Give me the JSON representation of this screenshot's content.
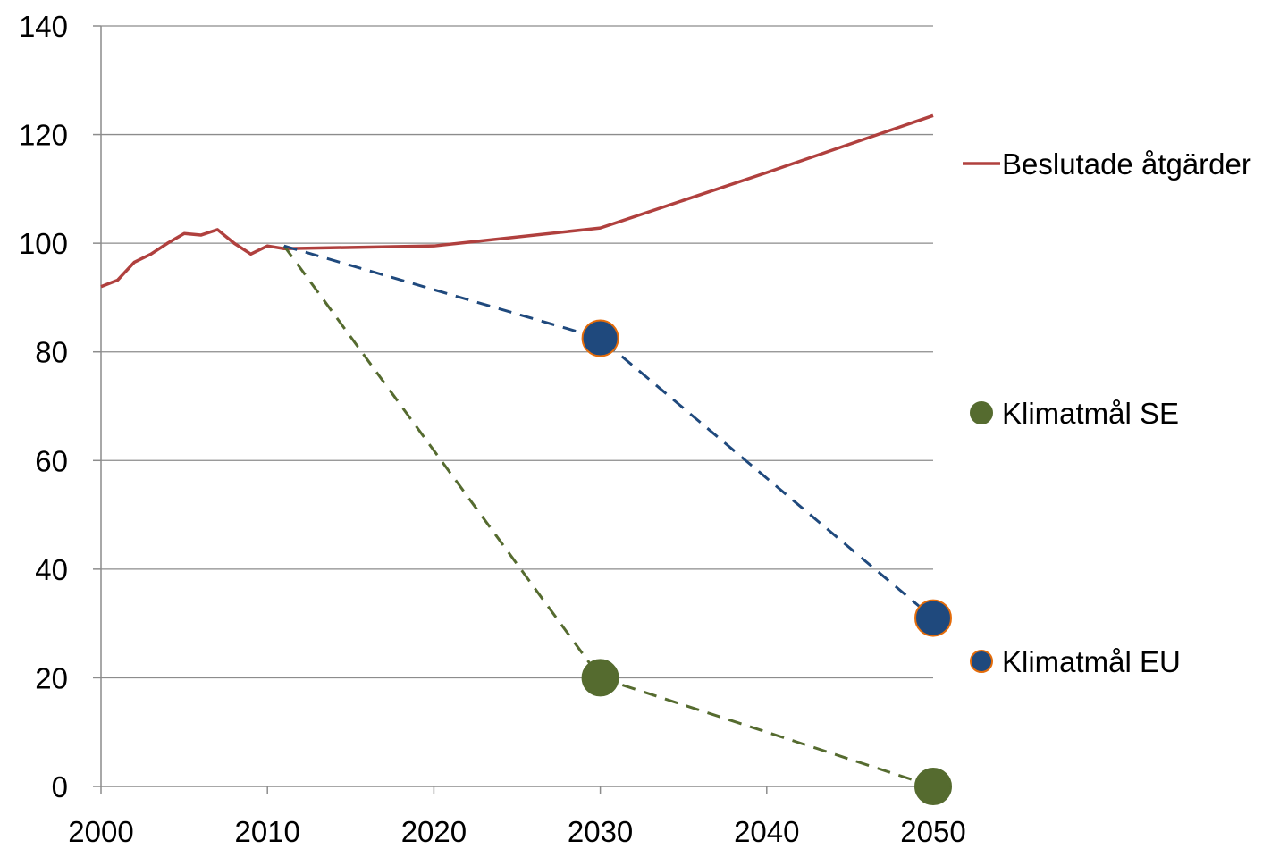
{
  "chart_data": {
    "type": "line",
    "title": "",
    "xlabel": "",
    "ylabel": "",
    "xlim": [
      2000,
      2050
    ],
    "ylim": [
      0,
      140
    ],
    "x_ticks": [
      2000,
      2010,
      2020,
      2030,
      2040,
      2050
    ],
    "y_ticks": [
      0,
      20,
      40,
      60,
      80,
      100,
      120,
      140
    ],
    "grid": "horizontal",
    "legend_position": "right",
    "series": [
      {
        "name": "Beslutade åtgärder",
        "style": "solid-line",
        "color": "#B0403E",
        "points": [
          [
            2000,
            92
          ],
          [
            2001,
            93.2
          ],
          [
            2002,
            96.5
          ],
          [
            2003,
            98
          ],
          [
            2004,
            100
          ],
          [
            2005,
            101.8
          ],
          [
            2006,
            101.5
          ],
          [
            2007,
            102.5
          ],
          [
            2008,
            100
          ],
          [
            2009,
            98
          ],
          [
            2010,
            99.5
          ],
          [
            2011,
            99
          ],
          [
            2020,
            99.5
          ],
          [
            2030,
            102.8
          ],
          [
            2040,
            113
          ],
          [
            2050,
            123.5
          ]
        ]
      },
      {
        "name": "Klimatmål SE",
        "style": "dashed-line-with-markers",
        "color": "#556B2F",
        "marker_edge": "#556B2F",
        "points": [
          [
            2011,
            99.5
          ],
          [
            2030,
            20
          ],
          [
            2050,
            0
          ]
        ],
        "marker_points": [
          [
            2030,
            20
          ],
          [
            2050,
            0
          ]
        ]
      },
      {
        "name": "Klimatmål EU",
        "style": "dashed-line-with-markers",
        "color": "#1F497D",
        "marker_edge": "#E46C0A",
        "points": [
          [
            2011,
            99.5
          ],
          [
            2030,
            82.5
          ],
          [
            2050,
            31
          ]
        ],
        "marker_points": [
          [
            2030,
            82.5
          ],
          [
            2050,
            31
          ]
        ]
      }
    ]
  }
}
